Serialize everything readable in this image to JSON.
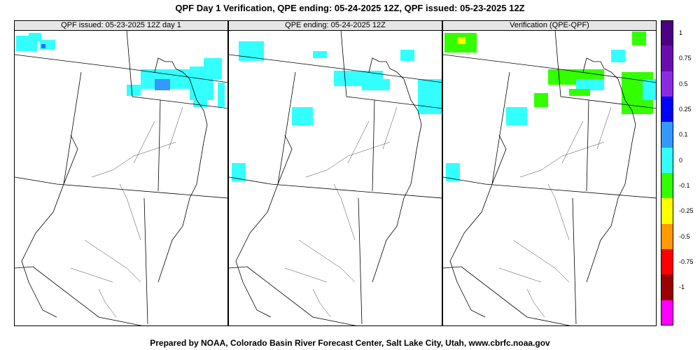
{
  "title": "QPF Day 1 Verification, QPE ending: 05-24-2025 12Z, QPF issued: 05-23-2025 12Z",
  "footer": "Prepared by NOAA, Colorado Basin River Forecast Center, Salt Lake City, Utah, www.cbrfc.noaa.gov",
  "panels": [
    {
      "title": "QPF issued: 05-23-2025 12Z day 1"
    },
    {
      "title": "QPE ending: 05-24-2025 12Z"
    },
    {
      "title": "Verification (QPE-QPF)"
    }
  ],
  "colorbar": {
    "segments": [
      {
        "color": "#4b0082"
      },
      {
        "color": "#6a0dad"
      },
      {
        "color": "#8a2be2"
      },
      {
        "color": "#0000ff"
      },
      {
        "color": "#3399ff"
      },
      {
        "color": "#33ffff"
      },
      {
        "color": "#33ff00"
      },
      {
        "color": "#ffff00"
      },
      {
        "color": "#ff9900"
      },
      {
        "color": "#ff0000"
      },
      {
        "color": "#990000"
      },
      {
        "color": "#ff00ff"
      }
    ],
    "labels": [
      "1",
      "0.75",
      "0.5",
      "0.25",
      "0.1",
      "0",
      "-0.1",
      "-0.25",
      "-0.5",
      "-0.75",
      "-1"
    ]
  },
  "colors": {
    "qpf_light": "#33ffff",
    "qpf_med": "#3399ff",
    "diff_positive": "#33ff00"
  }
}
